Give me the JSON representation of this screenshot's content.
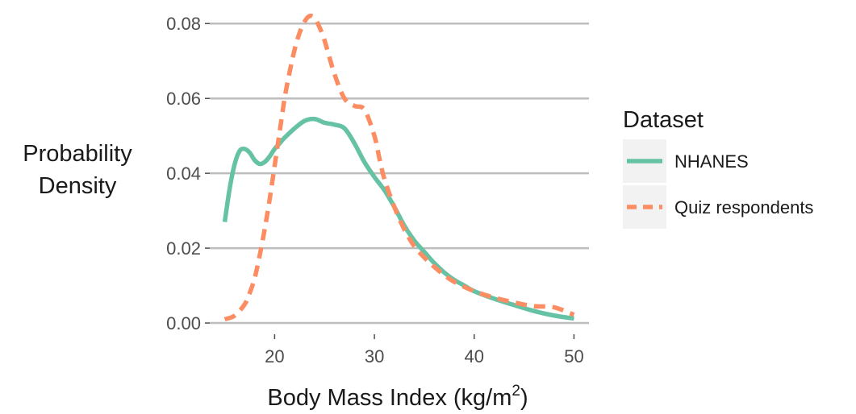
{
  "chart_data": {
    "type": "line",
    "xlabel_main": "Body Mass Index (kg/m",
    "xlabel_sup": "2",
    "xlabel_close": ")",
    "ylabel_line1": "Probability",
    "ylabel_line2": "Density",
    "xlim": [
      13.5,
      51.5
    ],
    "ylim": [
      -0.003,
      0.085
    ],
    "x_ticks": [
      20,
      30,
      40,
      50
    ],
    "x_tick_labels": [
      "20",
      "30",
      "40",
      "50"
    ],
    "y_ticks": [
      0.0,
      0.02,
      0.04,
      0.06,
      0.08
    ],
    "y_tick_labels": [
      "0.00",
      "0.02",
      "0.04",
      "0.06",
      "0.08"
    ],
    "grid": "horizontal major gridlines",
    "legend": {
      "title": "Dataset",
      "position": "right",
      "entries": [
        "NHANES",
        "Quiz respondents"
      ]
    },
    "series": [
      {
        "name": "NHANES",
        "color": "#66c2a5",
        "dash": "solid",
        "x": [
          15,
          15.5,
          16,
          16.5,
          17,
          17.5,
          18,
          18.5,
          19,
          19.5,
          20,
          20.5,
          21,
          22,
          23,
          24,
          25,
          26,
          27,
          28,
          29,
          30,
          31,
          32,
          33,
          34,
          35,
          36,
          37,
          38,
          39,
          40,
          42,
          44,
          46,
          48,
          50
        ],
        "y": [
          0.027,
          0.036,
          0.0425,
          0.046,
          0.0465,
          0.0455,
          0.0435,
          0.0425,
          0.043,
          0.0445,
          0.0465,
          0.048,
          0.0495,
          0.052,
          0.054,
          0.0545,
          0.0535,
          0.053,
          0.052,
          0.048,
          0.043,
          0.039,
          0.0355,
          0.031,
          0.026,
          0.022,
          0.019,
          0.016,
          0.0135,
          0.0115,
          0.01,
          0.0085,
          0.0065,
          0.0048,
          0.0032,
          0.002,
          0.0012
        ]
      },
      {
        "name": "Quiz respondents",
        "color": "#fc8d62",
        "dash": "dashed",
        "x": [
          15,
          16,
          17,
          17.5,
          18,
          18.5,
          19,
          19.5,
          20,
          20.5,
          21,
          21.5,
          22,
          22.5,
          23,
          23.5,
          24,
          24.5,
          25,
          26,
          27,
          28,
          29,
          30,
          30.5,
          31,
          32,
          33,
          34,
          35,
          36,
          37,
          38,
          40,
          42,
          44,
          46,
          48,
          50
        ],
        "y": [
          0.001,
          0.002,
          0.005,
          0.008,
          0.012,
          0.018,
          0.025,
          0.033,
          0.042,
          0.051,
          0.06,
          0.067,
          0.073,
          0.0775,
          0.0805,
          0.082,
          0.0815,
          0.079,
          0.0755,
          0.0665,
          0.06,
          0.058,
          0.057,
          0.05,
          0.044,
          0.0385,
          0.031,
          0.025,
          0.0205,
          0.0175,
          0.015,
          0.0128,
          0.011,
          0.0085,
          0.0068,
          0.0055,
          0.0045,
          0.0042,
          0.0022
        ]
      }
    ]
  }
}
